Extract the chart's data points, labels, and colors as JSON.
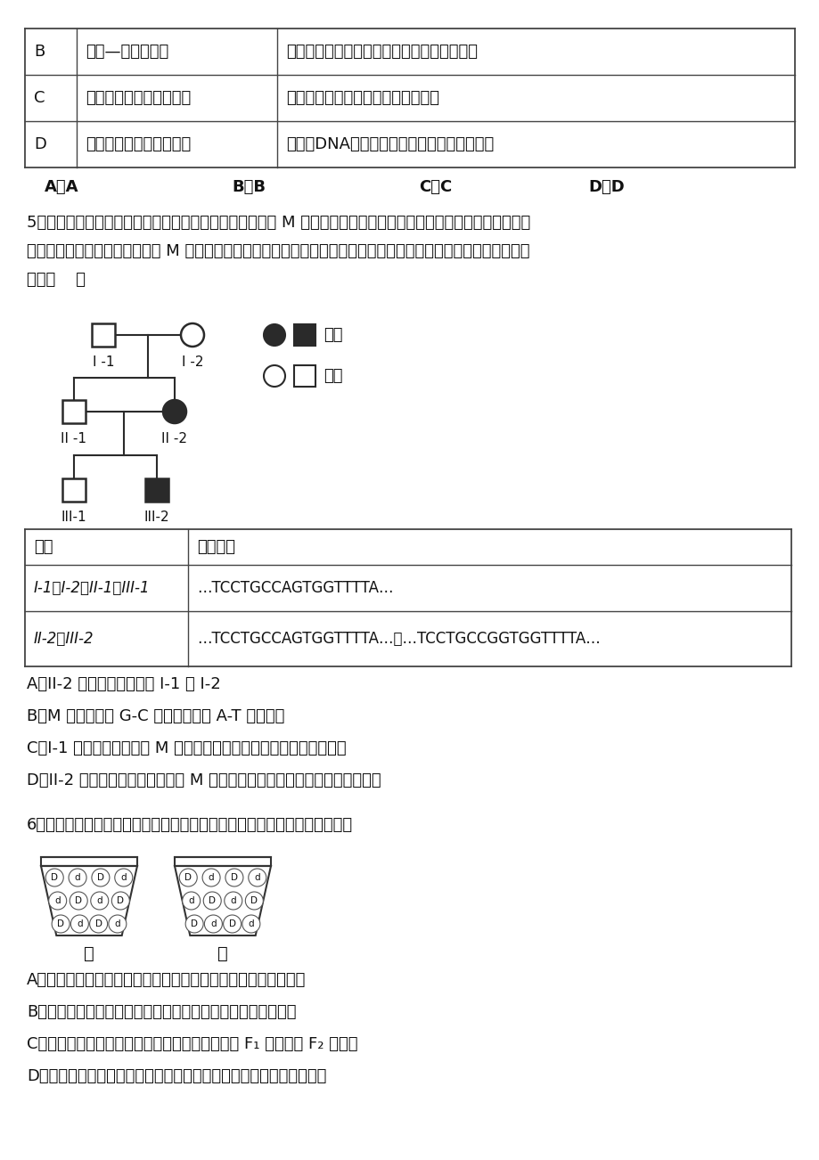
{
  "bg_color": "#ffffff",
  "table1": {
    "rows": [
      [
        "B",
        "鲁宾—卡门的实验",
        "设置空白对照组，证明光合作用中的氧来自水"
      ],
      [
        "C",
        "噌菌体侵染大肠杆菌实验",
        "搔拌的目的是加速噌菌体的侵染过程"
      ],
      [
        "D",
        "肺炎双球菌体外转化实验",
        "证明了DNA是遗传物质，蛋白质不是遗传物质"
      ]
    ]
  },
  "q4_choices": [
    "A．A",
    "B．B",
    "C．C",
    "D．D"
  ],
  "q5_text1": "5．研究表明，遗传性骨骼发育不良症的发生与常染色体上 M 基因的突变有关。现有一遗传性骨骼发育不良症家系如",
  "q5_text2": "下图，科研人员对该家系各成员 M 基因所在的同源染色体上相应位点序列进行检测，结果如下表。下列有关叙述正确",
  "q5_text3": "的是（    ）",
  "table2_h1": "成员",
  "table2_h2": "测序结果",
  "table2_r1c1": "I-1、I-2、II-1、III-1",
  "table2_r1c2": "…TCCTGCCAGTGGTTTTA…",
  "table2_r2c1": "II-2、III-2",
  "table2_r2c2": "…TCCTGCCAGTGGTTTTA…和…TCCTGCCGGTGGTTTTA…",
  "q5a": "A．II-2 的致病基因来自于 I-1 和 I-2",
  "q5b": "B．M 基因发生了 G-C 碘基对替换为 A-T 导致突变",
  "q5c": "C．I-1 产生配子时发生了 M 基因隐性突变可能导致该家系遗传病发生",
  "q5d": "D．II-2 的早期胚胎细胞中发生了 M 基因显性突变可能导致该家系遗传病发生",
  "q6_text": "6．如图表示对孟德尔一对相对性状杂交实验的模拟装置。下列叙述错误的是",
  "q6a": "A．甲、乙容器内两种不同颜色小球的大小、重量及数量必须相等",
  "q6b": "B．从甲或乙容器随机取出一个小球可模拟等位基因分离的过程",
  "q6c": "C．从甲、乙容器各随机取出一个小球并组合模拟 F₁ 自交产生 F₂ 的过程",
  "q6d": "D．该实验要做到多次重复并统计，每次取出后要及时放回小球并摇匀"
}
